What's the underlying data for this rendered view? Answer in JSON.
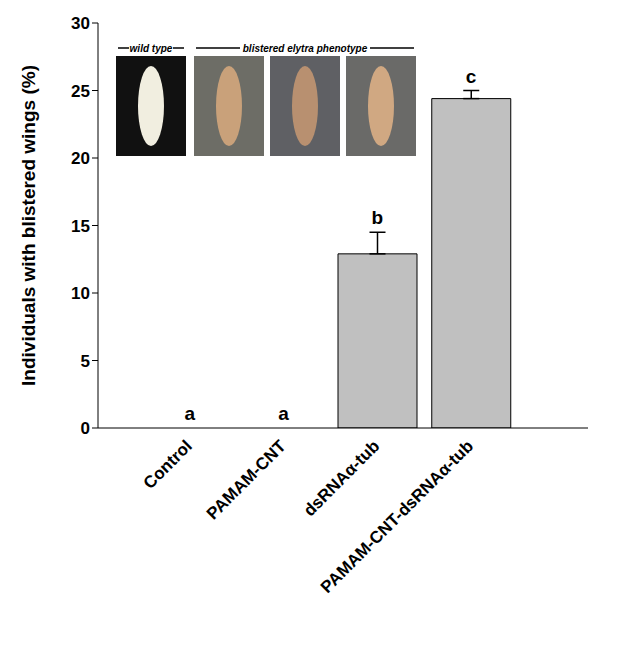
{
  "chart_data": {
    "type": "bar",
    "y_label": "Individuals with blistered wings (%)",
    "categories": [
      "Control",
      "PAMAM-CNT",
      "dsRNAα-tub",
      "PAMAM-CNT-dsRNAα-tub"
    ],
    "values": [
      0,
      0,
      12.9,
      24.4
    ],
    "errors": [
      0,
      0,
      1.6,
      0.6
    ],
    "letters": [
      "a",
      "a",
      "b",
      "c"
    ],
    "inset_labels": [
      "wild type",
      "blistered elytra phenotype"
    ],
    "color": "#c0c0c0",
    "ylim": [
      0,
      30
    ],
    "yticks": [
      0,
      5,
      10,
      15,
      20,
      25,
      30
    ]
  }
}
